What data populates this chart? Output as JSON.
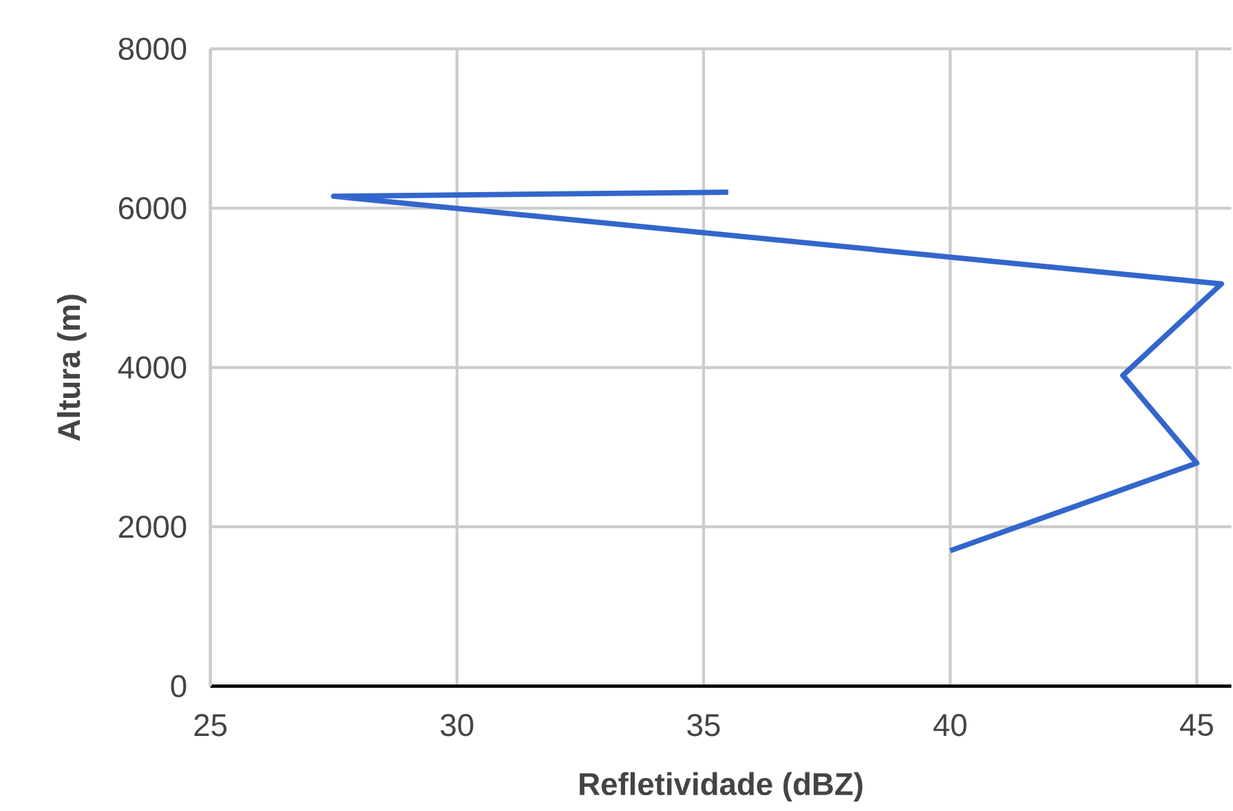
{
  "chart_data": {
    "type": "line",
    "xlabel": "Refletividade (dBZ)",
    "ylabel": "Altura (m)",
    "x": [
      40.0,
      45.0,
      43.5,
      45.5,
      27.5,
      35.5
    ],
    "series": [
      {
        "color": "#3366cc",
        "values": [
          1700,
          2800,
          3900,
          5050,
          6150,
          6200
        ]
      }
    ],
    "xlim": [
      25,
      45.7
    ],
    "ylim": [
      0,
      8000
    ],
    "xticks": [
      25,
      30,
      35,
      40,
      45
    ],
    "yticks": [
      0,
      2000,
      4000,
      6000,
      8000
    ],
    "grid": true,
    "marker": "none",
    "line_style": "solid"
  }
}
